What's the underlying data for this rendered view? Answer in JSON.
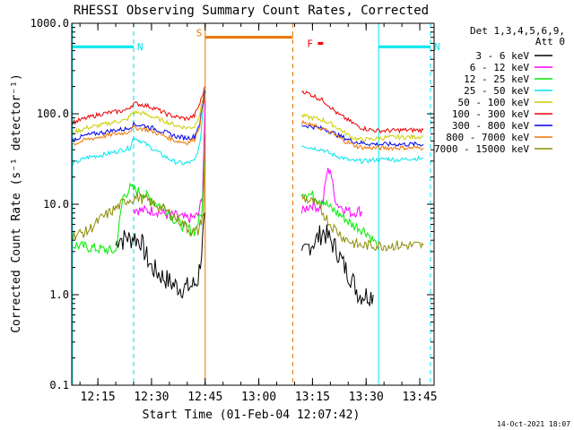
{
  "chart_data": {
    "type": "line",
    "title": "RHESSI Observing Summary Count Rates, Corrected",
    "ylabel": "Corrected Count Rate (s⁻¹ detector⁻¹)",
    "xlabel": "Start Time (01-Feb-04 12:07:42)",
    "footer_date": "14-Oct-2021 18:07",
    "legend_header": [
      "Det 1,3,4,5,6,9,",
      "Att 0"
    ],
    "y_scale": "log",
    "ylim": [
      0.1,
      1000
    ],
    "y_ticks": [
      {
        "value": 0.1,
        "label": "0.1"
      },
      {
        "value": 1,
        "label": "1.0"
      },
      {
        "value": 10,
        "label": "10.0"
      },
      {
        "value": 100,
        "label": "100.0"
      },
      {
        "value": 1000,
        "label": "1000.0"
      }
    ],
    "xlim_minutes_after_1200": [
      7.7,
      47.7
    ],
    "x_ticks": [
      {
        "value": 15,
        "label": "12:15"
      },
      {
        "value": 30,
        "label": "12:30"
      },
      {
        "value": 45,
        "label": "12:45"
      },
      {
        "value": 60,
        "label": "13:00"
      },
      {
        "value": 75,
        "label": "13:15"
      },
      {
        "value": 90,
        "label": "13:30"
      },
      {
        "value": 105,
        "label": "13:45"
      }
    ],
    "flags": [
      {
        "label": "N",
        "color": "#00e5ee",
        "start": 7.9,
        "end": 25.0,
        "level": 550
      },
      {
        "label": "S",
        "color": "#ee7600",
        "start": 45.0,
        "end": 69.5,
        "level": 700
      },
      {
        "label": "F",
        "color": "#ee0000",
        "start": 76.5,
        "end": 78.0,
        "level": 600
      },
      {
        "label": "N",
        "color": "#00e5ee",
        "start": 93.5,
        "end": 108.0,
        "level": 550
      }
    ],
    "markers": [
      {
        "x": 7.9,
        "color": "#00e5ee",
        "style": "solid"
      },
      {
        "x": 25.0,
        "color": "#00e5ee",
        "style": "dashed"
      },
      {
        "x": 45.0,
        "color": "#ee7600",
        "style": "solid"
      },
      {
        "x": 69.5,
        "color": "#ee7600",
        "style": "dashed"
      },
      {
        "x": 93.5,
        "color": "#00e5ee",
        "style": "solid"
      },
      {
        "x": 108.0,
        "color": "#00e5ee",
        "style": "dashed"
      }
    ],
    "series": [
      {
        "name": "3 - 6 keV",
        "color": "#000000",
        "points": [
          [
            20,
            3.5
          ],
          [
            21,
            4.5
          ],
          [
            22,
            4
          ],
          [
            23,
            4.5
          ],
          [
            24,
            4
          ],
          [
            25,
            4.5
          ],
          [
            26,
            4
          ],
          [
            27,
            4
          ],
          [
            28,
            3
          ],
          [
            30,
            2
          ],
          [
            33,
            1.6
          ],
          [
            36,
            1.3
          ],
          [
            38,
            1.2
          ],
          [
            40,
            1.2
          ],
          [
            42,
            1.3
          ],
          [
            43,
            1.5
          ],
          [
            44,
            3
          ],
          [
            44.8,
            8
          ]
        ],
        "points2": [
          [
            72,
            2.5
          ],
          [
            74,
            3.5
          ],
          [
            76,
            4
          ],
          [
            77,
            4.5
          ],
          [
            78,
            5
          ],
          [
            79,
            4.5
          ],
          [
            80,
            4
          ],
          [
            82,
            3
          ],
          [
            84,
            2
          ],
          [
            86,
            1.5
          ],
          [
            88,
            1
          ],
          [
            90,
            1
          ],
          [
            92,
            1
          ]
        ]
      },
      {
        "name": "6 - 12 keV",
        "color": "#ff00ff",
        "points": [
          [
            25,
            9
          ],
          [
            27,
            8.5
          ],
          [
            29,
            8.5
          ],
          [
            31,
            8.5
          ],
          [
            33,
            8
          ],
          [
            35,
            7.5
          ],
          [
            37,
            7.5
          ],
          [
            39,
            7
          ],
          [
            41,
            7
          ],
          [
            43,
            7.5
          ],
          [
            44.2,
            12
          ],
          [
            45,
            140
          ]
        ],
        "points2": [
          [
            72,
            8
          ],
          [
            73,
            9
          ],
          [
            75,
            10
          ],
          [
            77,
            9
          ],
          [
            78,
            11
          ],
          [
            79,
            22
          ],
          [
            80,
            25
          ],
          [
            81,
            13
          ],
          [
            82,
            10
          ],
          [
            84,
            9
          ],
          [
            86,
            8
          ],
          [
            88,
            8.5
          ],
          [
            89,
            8
          ]
        ]
      },
      {
        "name": "12 - 25 keV",
        "color": "#00ee00",
        "points": [
          [
            8,
            3.5
          ],
          [
            9,
            3.5
          ],
          [
            20,
            3
          ],
          [
            22,
            12
          ],
          [
            24,
            15
          ],
          [
            26,
            14
          ],
          [
            28,
            13
          ],
          [
            30,
            11
          ],
          [
            32,
            10
          ],
          [
            34,
            9
          ],
          [
            36,
            7
          ],
          [
            38,
            6
          ],
          [
            40,
            5.5
          ],
          [
            42,
            5
          ],
          [
            44,
            8
          ],
          [
            45,
            30
          ]
        ],
        "points2": [
          [
            72,
            14
          ],
          [
            74,
            13
          ],
          [
            76,
            12
          ],
          [
            78,
            11
          ],
          [
            80,
            9
          ],
          [
            82,
            8
          ],
          [
            84,
            7
          ],
          [
            86,
            6
          ],
          [
            88,
            5.5
          ],
          [
            90,
            5
          ],
          [
            92,
            4
          ],
          [
            93,
            3.5
          ]
        ]
      },
      {
        "name": "25 - 50 keV",
        "color": "#00e5ee",
        "points": [
          [
            8,
            28
          ],
          [
            12,
            33
          ],
          [
            16,
            35
          ],
          [
            20,
            38
          ],
          [
            24,
            42
          ],
          [
            25,
            55
          ],
          [
            27,
            50
          ],
          [
            30,
            42
          ],
          [
            33,
            35
          ],
          [
            36,
            30
          ],
          [
            39,
            28
          ],
          [
            42,
            30
          ],
          [
            43.5,
            45
          ],
          [
            45,
            200
          ]
        ],
        "points2": [
          [
            72,
            45
          ],
          [
            75,
            42
          ],
          [
            78,
            40
          ],
          [
            80,
            36
          ],
          [
            82,
            34
          ],
          [
            84,
            32
          ],
          [
            86,
            30
          ],
          [
            88,
            30
          ],
          [
            90,
            30
          ],
          [
            92,
            31
          ],
          [
            94,
            31
          ],
          [
            96,
            32
          ],
          [
            98,
            31
          ],
          [
            100,
            31
          ],
          [
            102,
            32
          ],
          [
            106,
            32
          ]
        ]
      },
      {
        "name": "50 - 100 keV",
        "color": "#cdcd00",
        "points": [
          [
            8,
            62
          ],
          [
            12,
            70
          ],
          [
            16,
            75
          ],
          [
            20,
            82
          ],
          [
            23,
            85
          ],
          [
            25,
            105
          ],
          [
            28,
            100
          ],
          [
            31,
            90
          ],
          [
            34,
            82
          ],
          [
            37,
            74
          ],
          [
            40,
            70
          ],
          [
            42,
            72
          ],
          [
            43.5,
            100
          ],
          [
            45,
            200
          ]
        ],
        "points2": [
          [
            72,
            95
          ],
          [
            75,
            90
          ],
          [
            78,
            85
          ],
          [
            80,
            78
          ],
          [
            82,
            70
          ],
          [
            84,
            62
          ],
          [
            86,
            55
          ],
          [
            88,
            52
          ],
          [
            90,
            52
          ],
          [
            93,
            53
          ],
          [
            96,
            55
          ],
          [
            100,
            55
          ],
          [
            106,
            56
          ]
        ]
      },
      {
        "name": "100 - 300 keV",
        "color": "#ee0000",
        "points": [
          [
            8,
            80
          ],
          [
            12,
            90
          ],
          [
            16,
            100
          ],
          [
            20,
            105
          ],
          [
            23,
            110
          ],
          [
            25,
            130
          ],
          [
            28,
            125
          ],
          [
            31,
            115
          ],
          [
            34,
            100
          ],
          [
            37,
            92
          ],
          [
            40,
            88
          ],
          [
            42,
            95
          ],
          [
            43.5,
            130
          ],
          [
            45,
            200
          ]
        ],
        "points2": [
          [
            72,
            180
          ],
          [
            75,
            160
          ],
          [
            78,
            140
          ],
          [
            80,
            120
          ],
          [
            82,
            100
          ],
          [
            84,
            90
          ],
          [
            86,
            80
          ],
          [
            88,
            72
          ],
          [
            90,
            68
          ],
          [
            93,
            65
          ],
          [
            96,
            65
          ],
          [
            100,
            66
          ],
          [
            106,
            66
          ]
        ]
      },
      {
        "name": "300 - 800 keV",
        "color": "#0000ee",
        "points": [
          [
            8,
            52
          ],
          [
            12,
            58
          ],
          [
            16,
            62
          ],
          [
            20,
            66
          ],
          [
            23,
            68
          ],
          [
            25,
            76
          ],
          [
            28,
            74
          ],
          [
            31,
            68
          ],
          [
            34,
            62
          ],
          [
            37,
            56
          ],
          [
            40,
            54
          ],
          [
            42,
            56
          ],
          [
            43.5,
            80
          ],
          [
            45,
            180
          ]
        ],
        "points2": [
          [
            72,
            75
          ],
          [
            75,
            72
          ],
          [
            78,
            68
          ],
          [
            80,
            64
          ],
          [
            82,
            58
          ],
          [
            84,
            54
          ],
          [
            86,
            50
          ],
          [
            88,
            48
          ],
          [
            90,
            47
          ],
          [
            93,
            46
          ],
          [
            96,
            46
          ],
          [
            100,
            46
          ],
          [
            106,
            46
          ]
        ]
      },
      {
        "name": "800 - 7000 keV",
        "color": "#ee7600",
        "points": [
          [
            8,
            46
          ],
          [
            12,
            52
          ],
          [
            16,
            56
          ],
          [
            20,
            60
          ],
          [
            23,
            62
          ],
          [
            25,
            70
          ],
          [
            28,
            68
          ],
          [
            31,
            62
          ],
          [
            34,
            56
          ],
          [
            37,
            50
          ],
          [
            40,
            48
          ],
          [
            42,
            52
          ],
          [
            43.5,
            75
          ],
          [
            45,
            170
          ]
        ],
        "points2": [
          [
            72,
            80
          ],
          [
            75,
            74
          ],
          [
            78,
            68
          ],
          [
            80,
            62
          ],
          [
            82,
            56
          ],
          [
            84,
            50
          ],
          [
            86,
            46
          ],
          [
            88,
            43
          ],
          [
            90,
            42
          ],
          [
            93,
            42
          ],
          [
            96,
            42
          ],
          [
            100,
            42
          ],
          [
            106,
            42
          ]
        ]
      },
      {
        "name": "7000 - 15000 keV",
        "color": "#8b8b00",
        "points": [
          [
            8,
            4.5
          ],
          [
            12,
            5
          ],
          [
            16,
            7
          ],
          [
            20,
            9
          ],
          [
            23,
            11
          ],
          [
            26,
            12
          ],
          [
            29,
            11
          ],
          [
            32,
            9.5
          ],
          [
            35,
            8
          ],
          [
            38,
            6.5
          ],
          [
            41,
            5
          ],
          [
            43,
            5
          ],
          [
            44.5,
            8
          ],
          [
            45,
            60
          ]
        ],
        "points2": [
          [
            72,
            12
          ],
          [
            74,
            11
          ],
          [
            76,
            10
          ],
          [
            78,
            8
          ],
          [
            80,
            6
          ],
          [
            82,
            5
          ],
          [
            84,
            4.2
          ],
          [
            86,
            3.8
          ],
          [
            88,
            3.5
          ],
          [
            90,
            3.5
          ],
          [
            93,
            3.5
          ],
          [
            96,
            3.5
          ],
          [
            100,
            3.5
          ],
          [
            106,
            3.5
          ]
        ]
      }
    ]
  }
}
